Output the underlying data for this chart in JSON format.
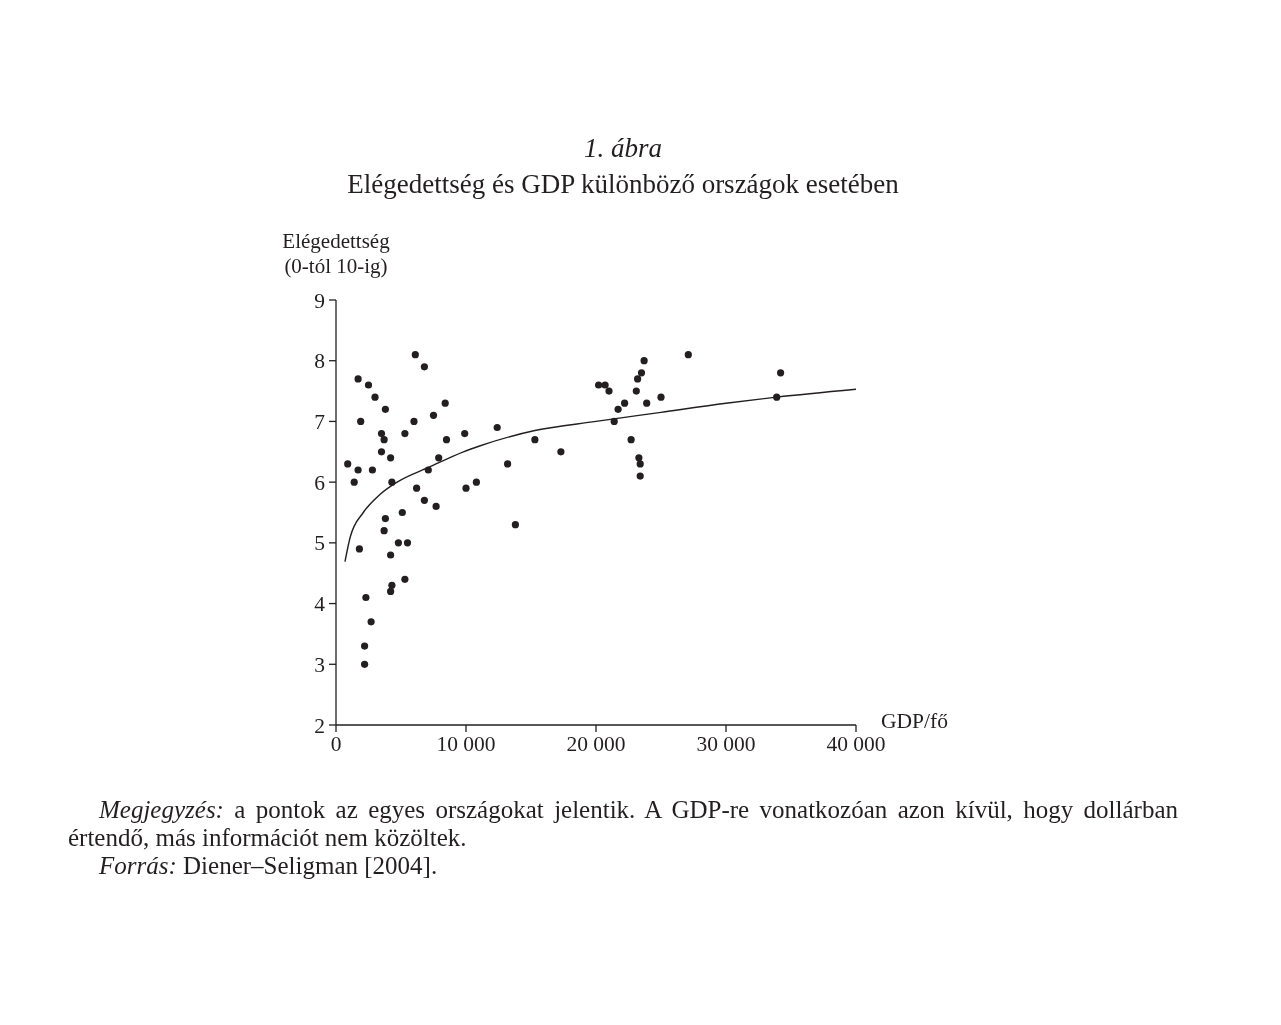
{
  "chart_data": {
    "type": "scatter",
    "title": "1. ábra",
    "subtitle": "Elégedettség és GDP különböző országok esetében",
    "xlabel": "GDP/fő",
    "ylabel": "Elégedettség\n(0-tól 10-ig)",
    "xlim": [
      0,
      40000
    ],
    "xticks": [
      0,
      {
        "value": 10000,
        "label": "10 000"
      },
      {
        "value": 20000,
        "label": "20 000"
      },
      {
        "value": 30000,
        "label": "30 000"
      },
      {
        "value": 40000,
        "label": "40 000"
      }
    ],
    "ylim": [
      2,
      9
    ],
    "yticks": [
      2,
      3,
      4,
      5,
      6,
      7,
      8,
      9
    ],
    "marker": "circle",
    "series": [
      {
        "color": "#231f20",
        "x": [
          900,
          1400,
          1700,
          1900,
          1700,
          1800,
          2500,
          3000,
          2300,
          2200,
          2200,
          2700,
          2800,
          3800,
          3500,
          3500,
          3700,
          4200,
          4300,
          3800,
          3700,
          4200,
          4300,
          4200,
          4800,
          5100,
          5300,
          5500,
          5300,
          6100,
          6000,
          6200,
          6800,
          6800,
          7100,
          7500,
          7900,
          7700,
          8400,
          8500,
          9900,
          10000,
          10800,
          12400,
          13200,
          13800,
          15300,
          17300,
          20200,
          20700,
          21000,
          23700,
          23500,
          23200,
          23100,
          22200,
          21700,
          21400,
          23900,
          25000,
          27100,
          22700,
          23300,
          23400,
          23400,
          33900,
          34200
        ],
        "values": [
          6.3,
          6.0,
          7.7,
          7.0,
          6.2,
          4.9,
          7.6,
          7.4,
          4.1,
          3.3,
          3.0,
          3.7,
          6.2,
          7.2,
          6.5,
          6.8,
          6.7,
          6.4,
          6.0,
          5.4,
          5.2,
          4.8,
          4.3,
          4.2,
          5.0,
          5.5,
          4.4,
          5.0,
          6.8,
          8.1,
          7.0,
          5.9,
          7.9,
          5.7,
          6.2,
          7.1,
          6.4,
          5.6,
          7.3,
          6.7,
          6.8,
          5.9,
          6.0,
          6.9,
          6.3,
          5.3,
          6.7,
          6.5,
          7.6,
          7.6,
          7.5,
          8.0,
          7.8,
          7.7,
          7.5,
          7.3,
          7.2,
          7.0,
          7.3,
          7.4,
          8.1,
          6.7,
          6.4,
          6.3,
          6.1,
          7.4,
          7.8
        ]
      },
      {
        "type": "line",
        "color": "#231f20",
        "marker": "none",
        "line_style": "solid",
        "x": [
          700,
          1100,
          2100,
          3400,
          4700,
          7200,
          9800,
          11100,
          15300,
          20000,
          25000,
          30000,
          33900,
          40000
        ],
        "values": [
          4.7,
          5.1,
          5.5,
          5.8,
          6.0,
          6.25,
          6.5,
          6.6,
          6.85,
          7.0,
          7.15,
          7.3,
          7.4,
          7.53
        ]
      }
    ],
    "annotations": [
      "Megjegyzés: a pontok az egyes országokat jelentik. A GDP-re vonatkozóan azon kívül, hogy dollárban értendő, más információt nem közöltek.",
      "Forrás: Diener–Seligman [2004]."
    ]
  }
}
